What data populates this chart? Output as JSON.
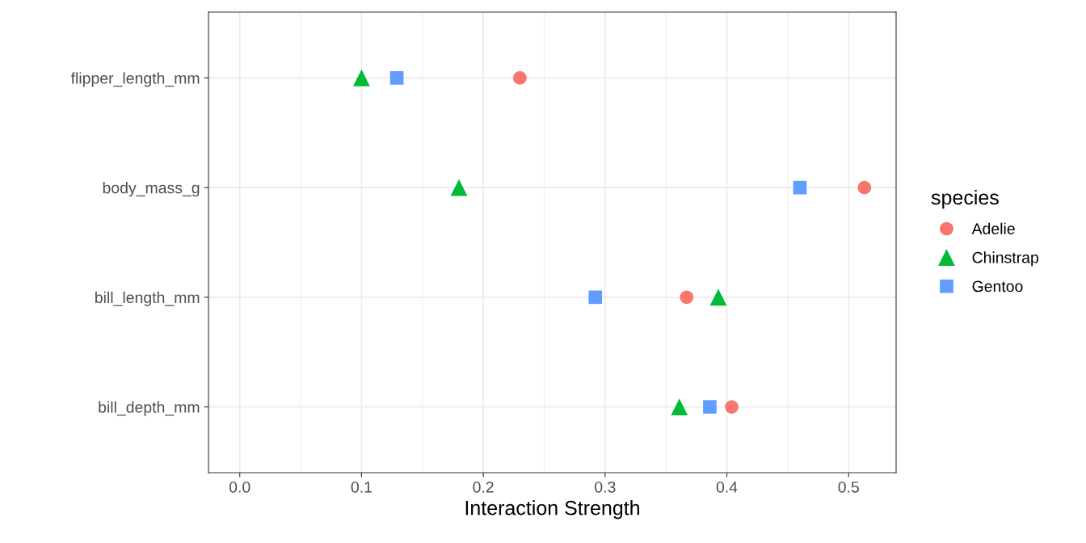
{
  "chart_data": {
    "type": "scatter",
    "orientation": "horizontal",
    "xlabel": "Interaction Strength",
    "legend_title": "species",
    "legend": "right",
    "categories": [
      "flipper_length_mm",
      "body_mass_g",
      "bill_length_mm",
      "bill_depth_mm"
    ],
    "series": [
      {
        "name": "Adelie",
        "color": "#f8766d",
        "marker": "circle",
        "values": [
          0.23,
          0.513,
          0.367,
          0.404
        ]
      },
      {
        "name": "Chinstrap",
        "color": "#00ba38",
        "marker": "triangle",
        "values": [
          0.1,
          0.18,
          0.393,
          0.361
        ]
      },
      {
        "name": "Gentoo",
        "color": "#619cff",
        "marker": "square",
        "values": [
          0.129,
          0.46,
          0.292,
          0.386
        ]
      }
    ],
    "xlim": [
      -0.0257,
      0.539
    ],
    "xticks": [
      {
        "value": 0,
        "label": "0.0"
      },
      0.1,
      0.2,
      0.3,
      0.4,
      0.5
    ],
    "grid": true
  }
}
